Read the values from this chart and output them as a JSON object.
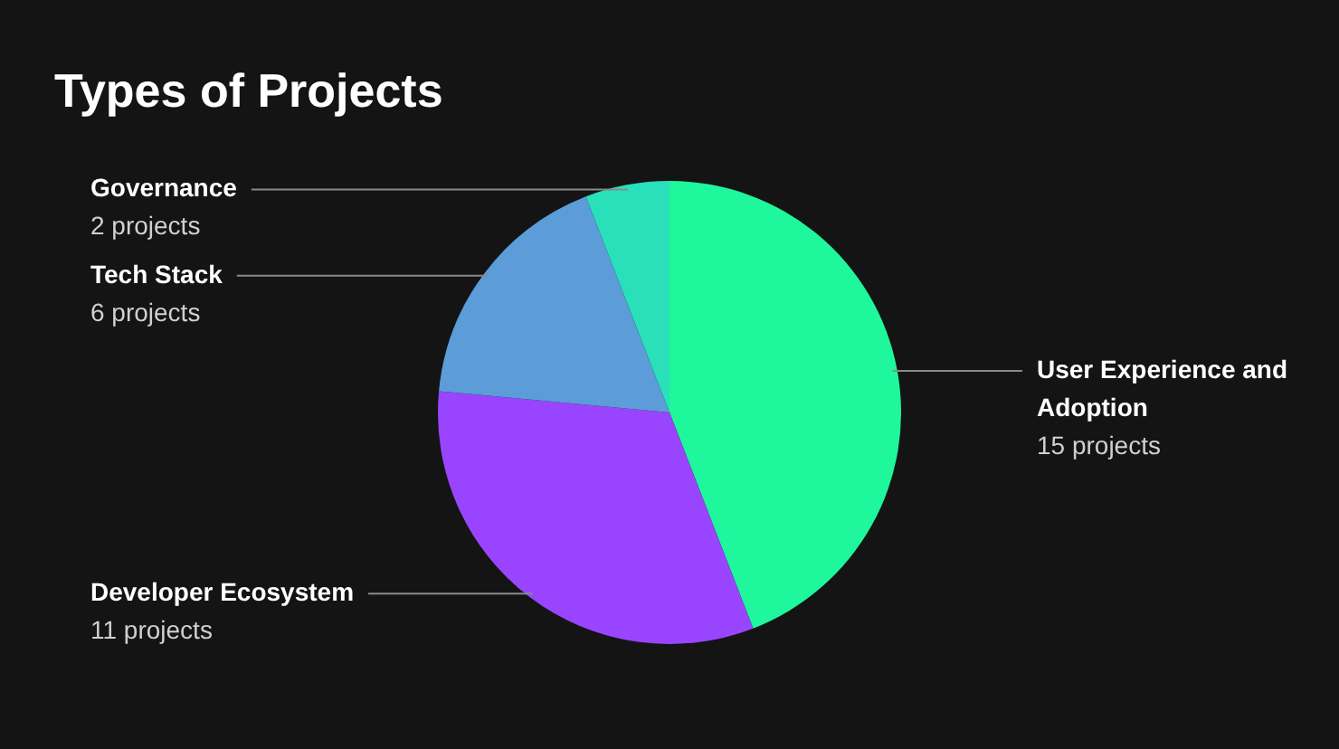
{
  "chart_data": {
    "type": "pie",
    "title": "Types of Projects",
    "categories": [
      "User Experience and Adoption",
      "Developer Ecosystem",
      "Tech Stack",
      "Governance"
    ],
    "values": [
      15,
      11,
      6,
      2
    ],
    "colors": [
      "#1ef79c",
      "#9945ff",
      "#5b9cd9",
      "#29e0bb"
    ],
    "value_labels": [
      "15 projects",
      "11 projects",
      "6 projects",
      "2 projects"
    ]
  }
}
